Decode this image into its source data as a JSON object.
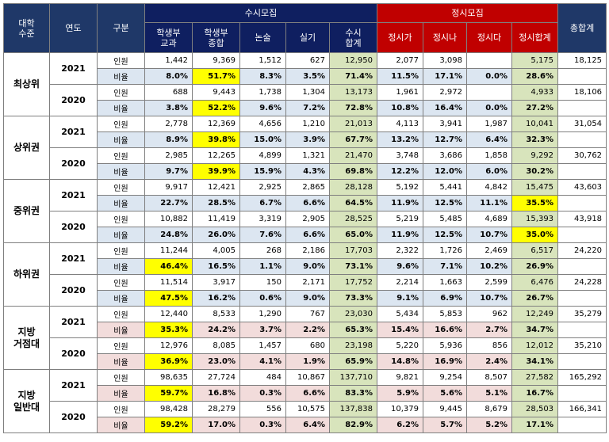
{
  "header": {
    "tier": [
      "대학",
      "수준"
    ],
    "year": "연도",
    "category": "구분",
    "susi_group": "수시모집",
    "jeongsi_group": "정시모집",
    "grand_total": "총합계",
    "cols": [
      [
        "학생부",
        "교과"
      ],
      [
        "학생부",
        "종합"
      ],
      [
        "논술"
      ],
      [
        "실기"
      ],
      [
        "수시",
        "합계"
      ],
      [
        "정시가"
      ],
      [
        "정시나"
      ],
      [
        "정시다"
      ],
      [
        "정시합계"
      ]
    ]
  },
  "labels": {
    "count": "인원",
    "ratio": "비율"
  },
  "groups": [
    {
      "tier": [
        "최상위"
      ],
      "tone": "blue",
      "years": [
        {
          "year": "2021",
          "count": {
            "vals": [
              "1,442",
              "9,369",
              "1,512",
              "627",
              "12,950",
              "2,077",
              "3,098",
              "",
              "5,175"
            ],
            "total": "18,125"
          },
          "ratio": {
            "vals": [
              "8.0%",
              "51.7%",
              "8.3%",
              "3.5%",
              "71.4%",
              "11.5%",
              "17.1%",
              "0.0%",
              "28.6%"
            ],
            "hl": [
              1
            ]
          }
        },
        {
          "year": "2020",
          "count": {
            "vals": [
              "688",
              "9,443",
              "1,738",
              "1,304",
              "13,173",
              "1,961",
              "2,972",
              "",
              "4,933"
            ],
            "total": "18,106"
          },
          "ratio": {
            "vals": [
              "3.8%",
              "52.2%",
              "9.6%",
              "7.2%",
              "72.8%",
              "10.8%",
              "16.4%",
              "0.0%",
              "27.2%"
            ],
            "hl": [
              1
            ]
          }
        }
      ]
    },
    {
      "tier": [
        "상위권"
      ],
      "tone": "blue",
      "years": [
        {
          "year": "2021",
          "count": {
            "vals": [
              "2,778",
              "12,369",
              "4,656",
              "1,210",
              "21,013",
              "4,113",
              "3,941",
              "1,987",
              "10,041"
            ],
            "total": "31,054"
          },
          "ratio": {
            "vals": [
              "8.9%",
              "39.8%",
              "15.0%",
              "3.9%",
              "67.7%",
              "13.2%",
              "12.7%",
              "6.4%",
              "32.3%"
            ],
            "hl": [
              1
            ]
          }
        },
        {
          "year": "2020",
          "count": {
            "vals": [
              "2,985",
              "12,265",
              "4,899",
              "1,321",
              "21,470",
              "3,748",
              "3,686",
              "1,858",
              "9,292"
            ],
            "total": "30,762"
          },
          "ratio": {
            "vals": [
              "9.7%",
              "39.9%",
              "15.9%",
              "4.3%",
              "69.8%",
              "12.2%",
              "12.0%",
              "6.0%",
              "30.2%"
            ],
            "hl": [
              1
            ]
          }
        }
      ]
    },
    {
      "tier": [
        "중위권"
      ],
      "tone": "blue",
      "years": [
        {
          "year": "2021",
          "count": {
            "vals": [
              "9,917",
              "12,421",
              "2,925",
              "2,865",
              "28,128",
              "5,192",
              "5,441",
              "4,842",
              "15,475"
            ],
            "total": "43,603"
          },
          "ratio": {
            "vals": [
              "22.7%",
              "28.5%",
              "6.7%",
              "6.6%",
              "64.5%",
              "11.9%",
              "12.5%",
              "11.1%",
              "35.5%"
            ],
            "hl": [
              8
            ]
          }
        },
        {
          "year": "2020",
          "count": {
            "vals": [
              "10,882",
              "11,419",
              "3,319",
              "2,905",
              "28,525",
              "5,219",
              "5,485",
              "4,689",
              "15,393"
            ],
            "total": "43,918"
          },
          "ratio": {
            "vals": [
              "24.8%",
              "26.0%",
              "7.6%",
              "6.6%",
              "65.0%",
              "11.9%",
              "12.5%",
              "10.7%",
              "35.0%"
            ],
            "hl": [
              8
            ]
          }
        }
      ]
    },
    {
      "tier": [
        "하위권"
      ],
      "tone": "blue",
      "years": [
        {
          "year": "2021",
          "count": {
            "vals": [
              "11,244",
              "4,005",
              "268",
              "2,186",
              "17,703",
              "2,322",
              "1,726",
              "2,469",
              "6,517"
            ],
            "total": "24,220"
          },
          "ratio": {
            "vals": [
              "46.4%",
              "16.5%",
              "1.1%",
              "9.0%",
              "73.1%",
              "9.6%",
              "7.1%",
              "10.2%",
              "26.9%"
            ],
            "hl": [
              0
            ]
          }
        },
        {
          "year": "2020",
          "count": {
            "vals": [
              "11,514",
              "3,917",
              "150",
              "2,171",
              "17,752",
              "2,214",
              "1,663",
              "2,599",
              "6,476"
            ],
            "total": "24,228"
          },
          "ratio": {
            "vals": [
              "47.5%",
              "16.2%",
              "0.6%",
              "9.0%",
              "73.3%",
              "9.1%",
              "6.9%",
              "10.7%",
              "26.7%"
            ],
            "hl": [
              0
            ]
          }
        }
      ]
    },
    {
      "tier": [
        "지방",
        "거점대"
      ],
      "tone": "pink",
      "years": [
        {
          "year": "2021",
          "count": {
            "vals": [
              "12,440",
              "8,533",
              "1,290",
              "767",
              "23,030",
              "5,434",
              "5,853",
              "962",
              "12,249"
            ],
            "total": "35,279"
          },
          "ratio": {
            "vals": [
              "35.3%",
              "24.2%",
              "3.7%",
              "2.2%",
              "65.3%",
              "15.4%",
              "16.6%",
              "2.7%",
              "34.7%"
            ],
            "hl": [
              0
            ]
          }
        },
        {
          "year": "2020",
          "count": {
            "vals": [
              "12,976",
              "8,085",
              "1,457",
              "680",
              "23,198",
              "5,220",
              "5,936",
              "856",
              "12,012"
            ],
            "total": "35,210"
          },
          "ratio": {
            "vals": [
              "36.9%",
              "23.0%",
              "4.1%",
              "1.9%",
              "65.9%",
              "14.8%",
              "16.9%",
              "2.4%",
              "34.1%"
            ],
            "hl": [
              0
            ]
          }
        }
      ]
    },
    {
      "tier": [
        "지방",
        "일반대"
      ],
      "tone": "pink",
      "years": [
        {
          "year": "2021",
          "count": {
            "vals": [
              "98,635",
              "27,724",
              "484",
              "10,867",
              "137,710",
              "9,821",
              "9,254",
              "8,507",
              "27,582"
            ],
            "total": "165,292"
          },
          "ratio": {
            "vals": [
              "59.7%",
              "16.8%",
              "0.3%",
              "6.6%",
              "83.3%",
              "5.9%",
              "5.6%",
              "5.1%",
              "16.7%"
            ],
            "hl": [
              0
            ]
          }
        },
        {
          "year": "2020",
          "count": {
            "vals": [
              "98,428",
              "28,279",
              "556",
              "10,575",
              "137,838",
              "10,379",
              "9,445",
              "8,679",
              "28,503"
            ],
            "total": "166,341"
          },
          "ratio": {
            "vals": [
              "59.2%",
              "17.0%",
              "0.3%",
              "6.4%",
              "82.9%",
              "6.2%",
              "5.7%",
              "5.2%",
              "17.1%"
            ],
            "hl": [
              0
            ]
          }
        }
      ]
    }
  ]
}
